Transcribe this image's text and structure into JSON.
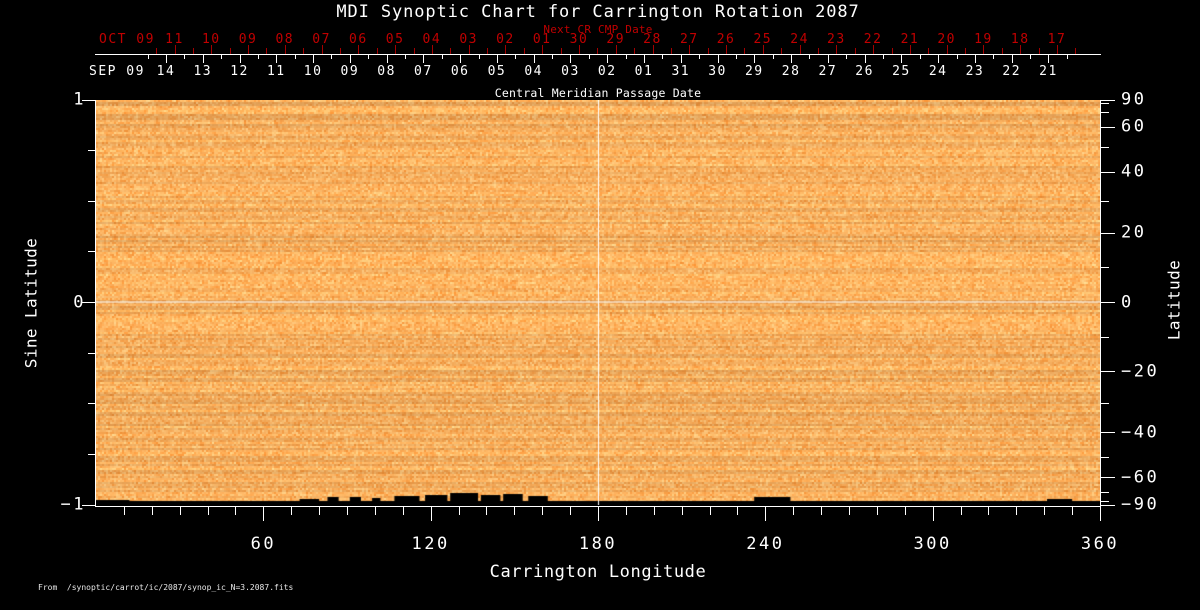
{
  "title": "MDI Synoptic Chart for Carrington Rotation 2087",
  "footer": "From  /synoptic/carrot/ic/2087/synop_ic_N=3.2087.fits",
  "colors": {
    "background": "#000000",
    "red_label": "#C00000",
    "red_tick": "#A40000",
    "axis_white": "#FFFFFF",
    "noise_dark": "#EE8C32",
    "noise_light": "#FFD28C",
    "missing_black": "#000000"
  },
  "chart_data": {
    "type": "heatmap",
    "title": "MDI Synoptic Chart for Carrington Rotation 2087",
    "description": "Solar synoptic intensity map shown as uniform orange speckle noise with white crosshair reference lines; black gaps of missing data along the south (bottom) edge",
    "top_axis": {
      "next_label": "Next CR CMP Date",
      "next_month": "OCT 09",
      "next_dates": [
        "11",
        "10",
        "09",
        "08",
        "07",
        "06",
        "05",
        "04",
        "03",
        "02",
        "01",
        "30",
        "29",
        "28",
        "27",
        "26",
        "25",
        "24",
        "23",
        "22",
        "21",
        "20",
        "19",
        "18",
        "17"
      ],
      "cmp_label": "Central Meridian Passage Date",
      "cmp_month": "SEP 09",
      "cmp_dates": [
        "14",
        "13",
        "12",
        "11",
        "10",
        "09",
        "08",
        "07",
        "06",
        "05",
        "04",
        "03",
        "02",
        "01",
        "31",
        "30",
        "29",
        "28",
        "27",
        "26",
        "25",
        "24",
        "23",
        "22",
        "21"
      ]
    },
    "x_axis": {
      "label": "Carrington Longitude",
      "range": [
        0,
        360
      ],
      "major_ticks": [
        60,
        120,
        180,
        240,
        300,
        360
      ],
      "minor_step_deg": 10
    },
    "y_left_axis": {
      "label": "Sine Latitude",
      "range": [
        -1,
        1
      ],
      "major_ticks": [
        1,
        0,
        -1
      ],
      "minor_step": 0.25
    },
    "y_right_axis": {
      "label": "Latitude",
      "major_ticks": [
        90,
        60,
        40,
        20,
        0,
        -20,
        -40,
        -60,
        -90
      ],
      "minor_step_deg": 10,
      "mapping": "sine-latitude spaced"
    },
    "crosshair": {
      "longitude": 180,
      "sine_latitude": 0
    },
    "missing_data_regions_lon_h": [
      [
        0,
        360,
        4
      ],
      [
        0,
        12,
        5
      ],
      [
        73,
        80,
        6
      ],
      [
        83,
        87,
        8
      ],
      [
        91,
        95,
        8
      ],
      [
        99,
        102,
        7
      ],
      [
        107,
        116,
        9
      ],
      [
        118,
        126,
        10
      ],
      [
        127,
        137,
        12
      ],
      [
        138,
        145,
        10
      ],
      [
        146,
        153,
        11
      ],
      [
        155,
        162,
        9
      ],
      [
        236,
        249,
        8
      ],
      [
        341,
        350,
        6
      ]
    ]
  }
}
